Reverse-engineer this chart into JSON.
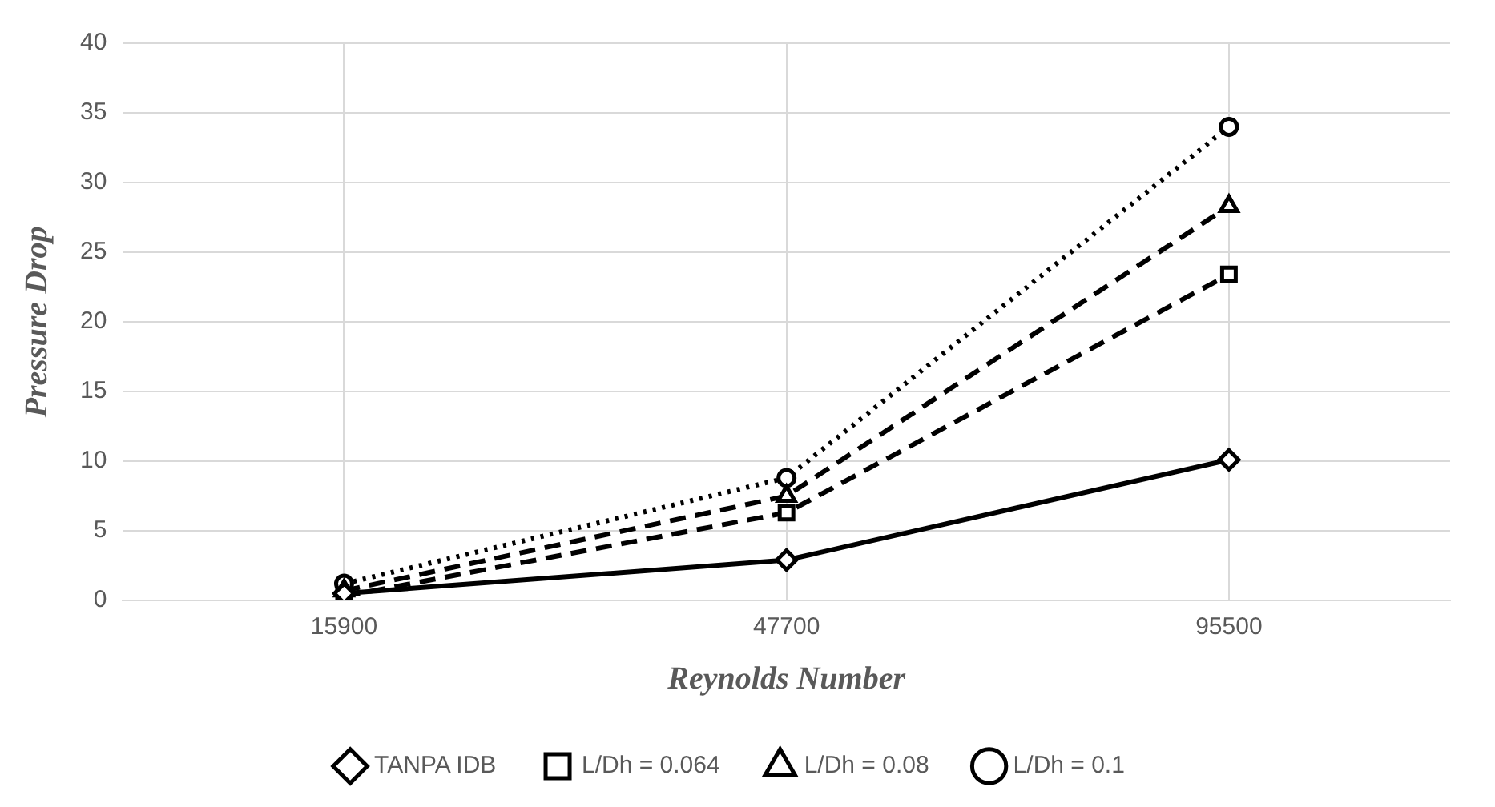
{
  "chart_data": {
    "type": "line",
    "xlabel": "Reynolds Number",
    "ylabel": "Pressure Drop",
    "categories": [
      "15900",
      "47700",
      "95500"
    ],
    "series": [
      {
        "name": "TANPA IDB",
        "color": "#000000",
        "values": [
          0.5,
          2.9,
          10.1
        ],
        "marker": "diamond",
        "line_style": "solid"
      },
      {
        "name": "L/Dh = 0.064",
        "color": "#000000",
        "values": [
          0.3,
          6.3,
          23.4
        ],
        "marker": "square",
        "line_style": "dashed"
      },
      {
        "name": "L/Dh = 0.08",
        "color": "#000000",
        "values": [
          0.7,
          7.5,
          28.3
        ],
        "marker": "triangle",
        "line_style": "dashed"
      },
      {
        "name": "L/Dh = 0.1",
        "color": "#000000",
        "values": [
          1.2,
          8.8,
          34.0
        ],
        "marker": "circle",
        "line_style": "dotted"
      }
    ],
    "ylim": [
      0,
      40
    ],
    "yticks": [
      0,
      5,
      10,
      15,
      20,
      25,
      30,
      35,
      40
    ],
    "grid": true,
    "legend": "bottom"
  }
}
